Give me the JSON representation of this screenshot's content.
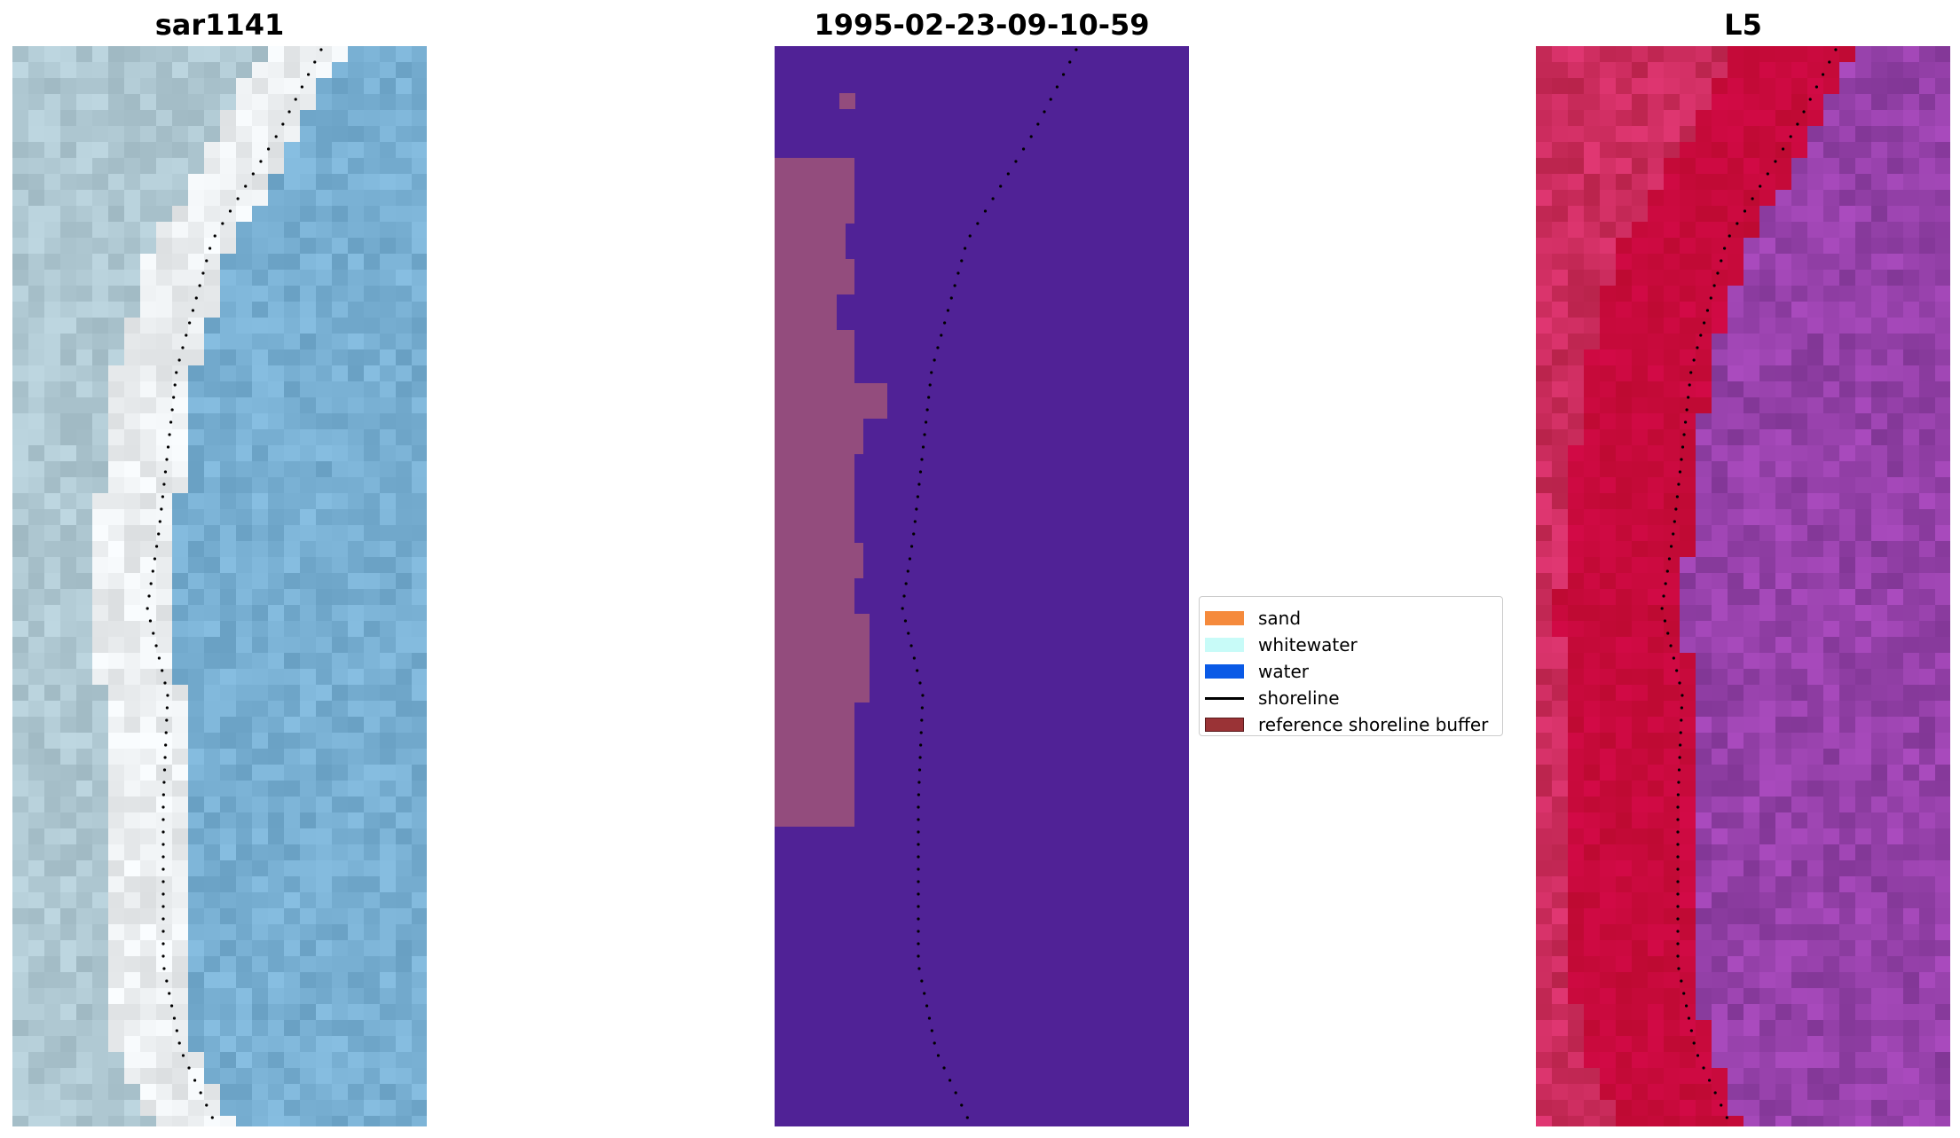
{
  "panels": [
    {
      "id": "rgb",
      "title": "sar1141"
    },
    {
      "id": "classified",
      "title": "1995-02-23-09-10-59"
    },
    {
      "id": "index",
      "title": "L5"
    }
  ],
  "legend": {
    "items": [
      {
        "label": "sand",
        "kind": "patch",
        "color": "#f58a3c"
      },
      {
        "label": "whitewater",
        "kind": "patch",
        "color": "#c8fbf8"
      },
      {
        "label": "water",
        "kind": "patch",
        "color": "#0a5ae6"
      },
      {
        "label": "shoreline",
        "kind": "line",
        "color": "#000000"
      },
      {
        "label": "reference shoreline buffer",
        "kind": "patch",
        "color": "#9a3336"
      }
    ]
  },
  "colors": {
    "classified_background": "#502296",
    "buffer": "#934c7d",
    "shoreline_dots": "#000000",
    "sand_red": "#c8093a",
    "index_purple": "#8a3aa8"
  },
  "icons": [
    "shoreline-dotted-line"
  ]
}
